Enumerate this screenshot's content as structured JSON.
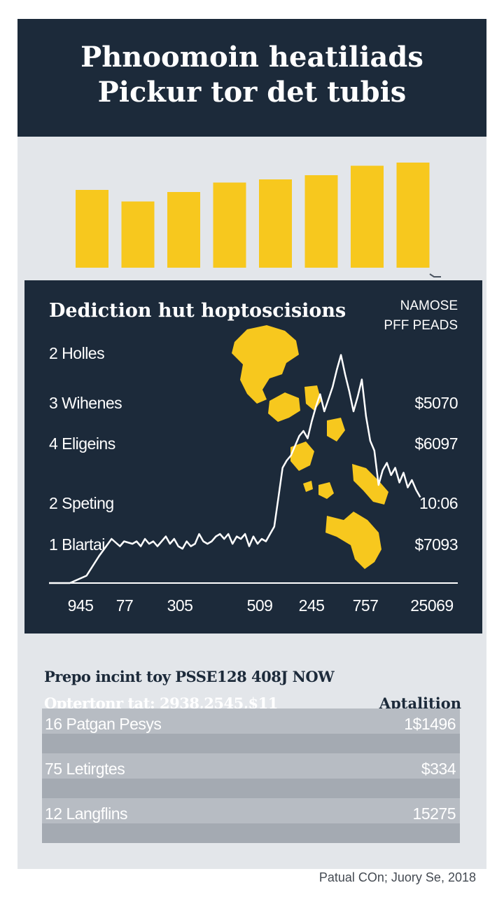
{
  "header": {
    "title_line1": "Phnoomoin heatiliads",
    "title_line2": "Pickur tor det tubis"
  },
  "summary": {
    "line1": "Prepo incint toy PSSE128 408J NOW",
    "line2": "Optertonr tat: 2938,2545,$11",
    "right_label": "Aptalition"
  },
  "table": {
    "rows": [
      {
        "label": "16 Patgan Pesys",
        "value": "1$1496"
      },
      {
        "label": "75 Letirgtes",
        "value": "$334"
      },
      {
        "label": "12 Langflins",
        "value": "15275"
      }
    ]
  },
  "footer": {
    "credit": "Patual COn; Juory Se, 2018"
  },
  "colors": {
    "navy": "#1c2a3a",
    "yellow": "#f7c81e",
    "background": "#e3e6ea",
    "row_band": "#b7bcc3"
  },
  "chart_data": [
    {
      "type": "bar",
      "categories": [
        "",
        "",
        "",
        "",
        "",
        "",
        "",
        ""
      ],
      "values": [
        74,
        63,
        72,
        81,
        84,
        88,
        97,
        100
      ],
      "ylim": [
        0,
        100
      ],
      "grid": false,
      "legend": "none"
    },
    {
      "type": "line",
      "title": "Dediction hut hoptoscisions",
      "legend_lines": [
        "NAMOSE",
        "PFF PEADS"
      ],
      "left_labels": [
        "2 Holles",
        "3 Wihenes",
        "4 Eligeins",
        "2 Speting",
        "1 Blartai"
      ],
      "right_labels": [
        "$5070",
        "$6097",
        "10:06",
        "$7093"
      ],
      "x_tick_labels": [
        "945",
        "77",
        "305",
        "509",
        "245",
        "757",
        "25069"
      ],
      "series": [
        {
          "x": [
            0,
            5,
            9,
            12,
            15,
            17,
            18,
            20,
            21,
            22,
            23,
            24,
            25,
            26,
            27,
            28,
            29,
            30,
            31,
            32,
            33,
            34,
            35,
            36,
            37,
            38,
            39,
            40,
            41,
            42,
            43,
            44,
            45,
            46,
            47,
            48,
            49,
            50,
            51,
            52,
            53,
            54,
            55,
            56,
            57,
            58,
            59,
            60,
            61,
            62,
            63,
            64,
            65,
            66,
            67,
            68,
            69,
            70,
            71,
            72,
            73,
            74,
            75,
            76,
            77,
            78,
            79,
            80,
            81,
            82,
            83,
            84,
            85,
            86,
            87,
            88,
            89
          ],
          "y": [
            0,
            0,
            3,
            11,
            18,
            15,
            17,
            16,
            17,
            15,
            18,
            16,
            17,
            15,
            17,
            19,
            16,
            18,
            15,
            14,
            17,
            15,
            16,
            20,
            17,
            16,
            17,
            19,
            20,
            18,
            20,
            16,
            19,
            18,
            20,
            15,
            19,
            16,
            18,
            17,
            20,
            23,
            35,
            47,
            50,
            52,
            56,
            60,
            62,
            59,
            66,
            72,
            77,
            70,
            75,
            80,
            87,
            93,
            85,
            78,
            70,
            76,
            83,
            68,
            58,
            54,
            40,
            46,
            49,
            44,
            47,
            41,
            45,
            39,
            42,
            38,
            35
          ],
          "xlim": [
            0,
            98
          ],
          "ylim": [
            0,
            100
          ]
        }
      ],
      "grid": false,
      "legend": "top-right"
    }
  ]
}
